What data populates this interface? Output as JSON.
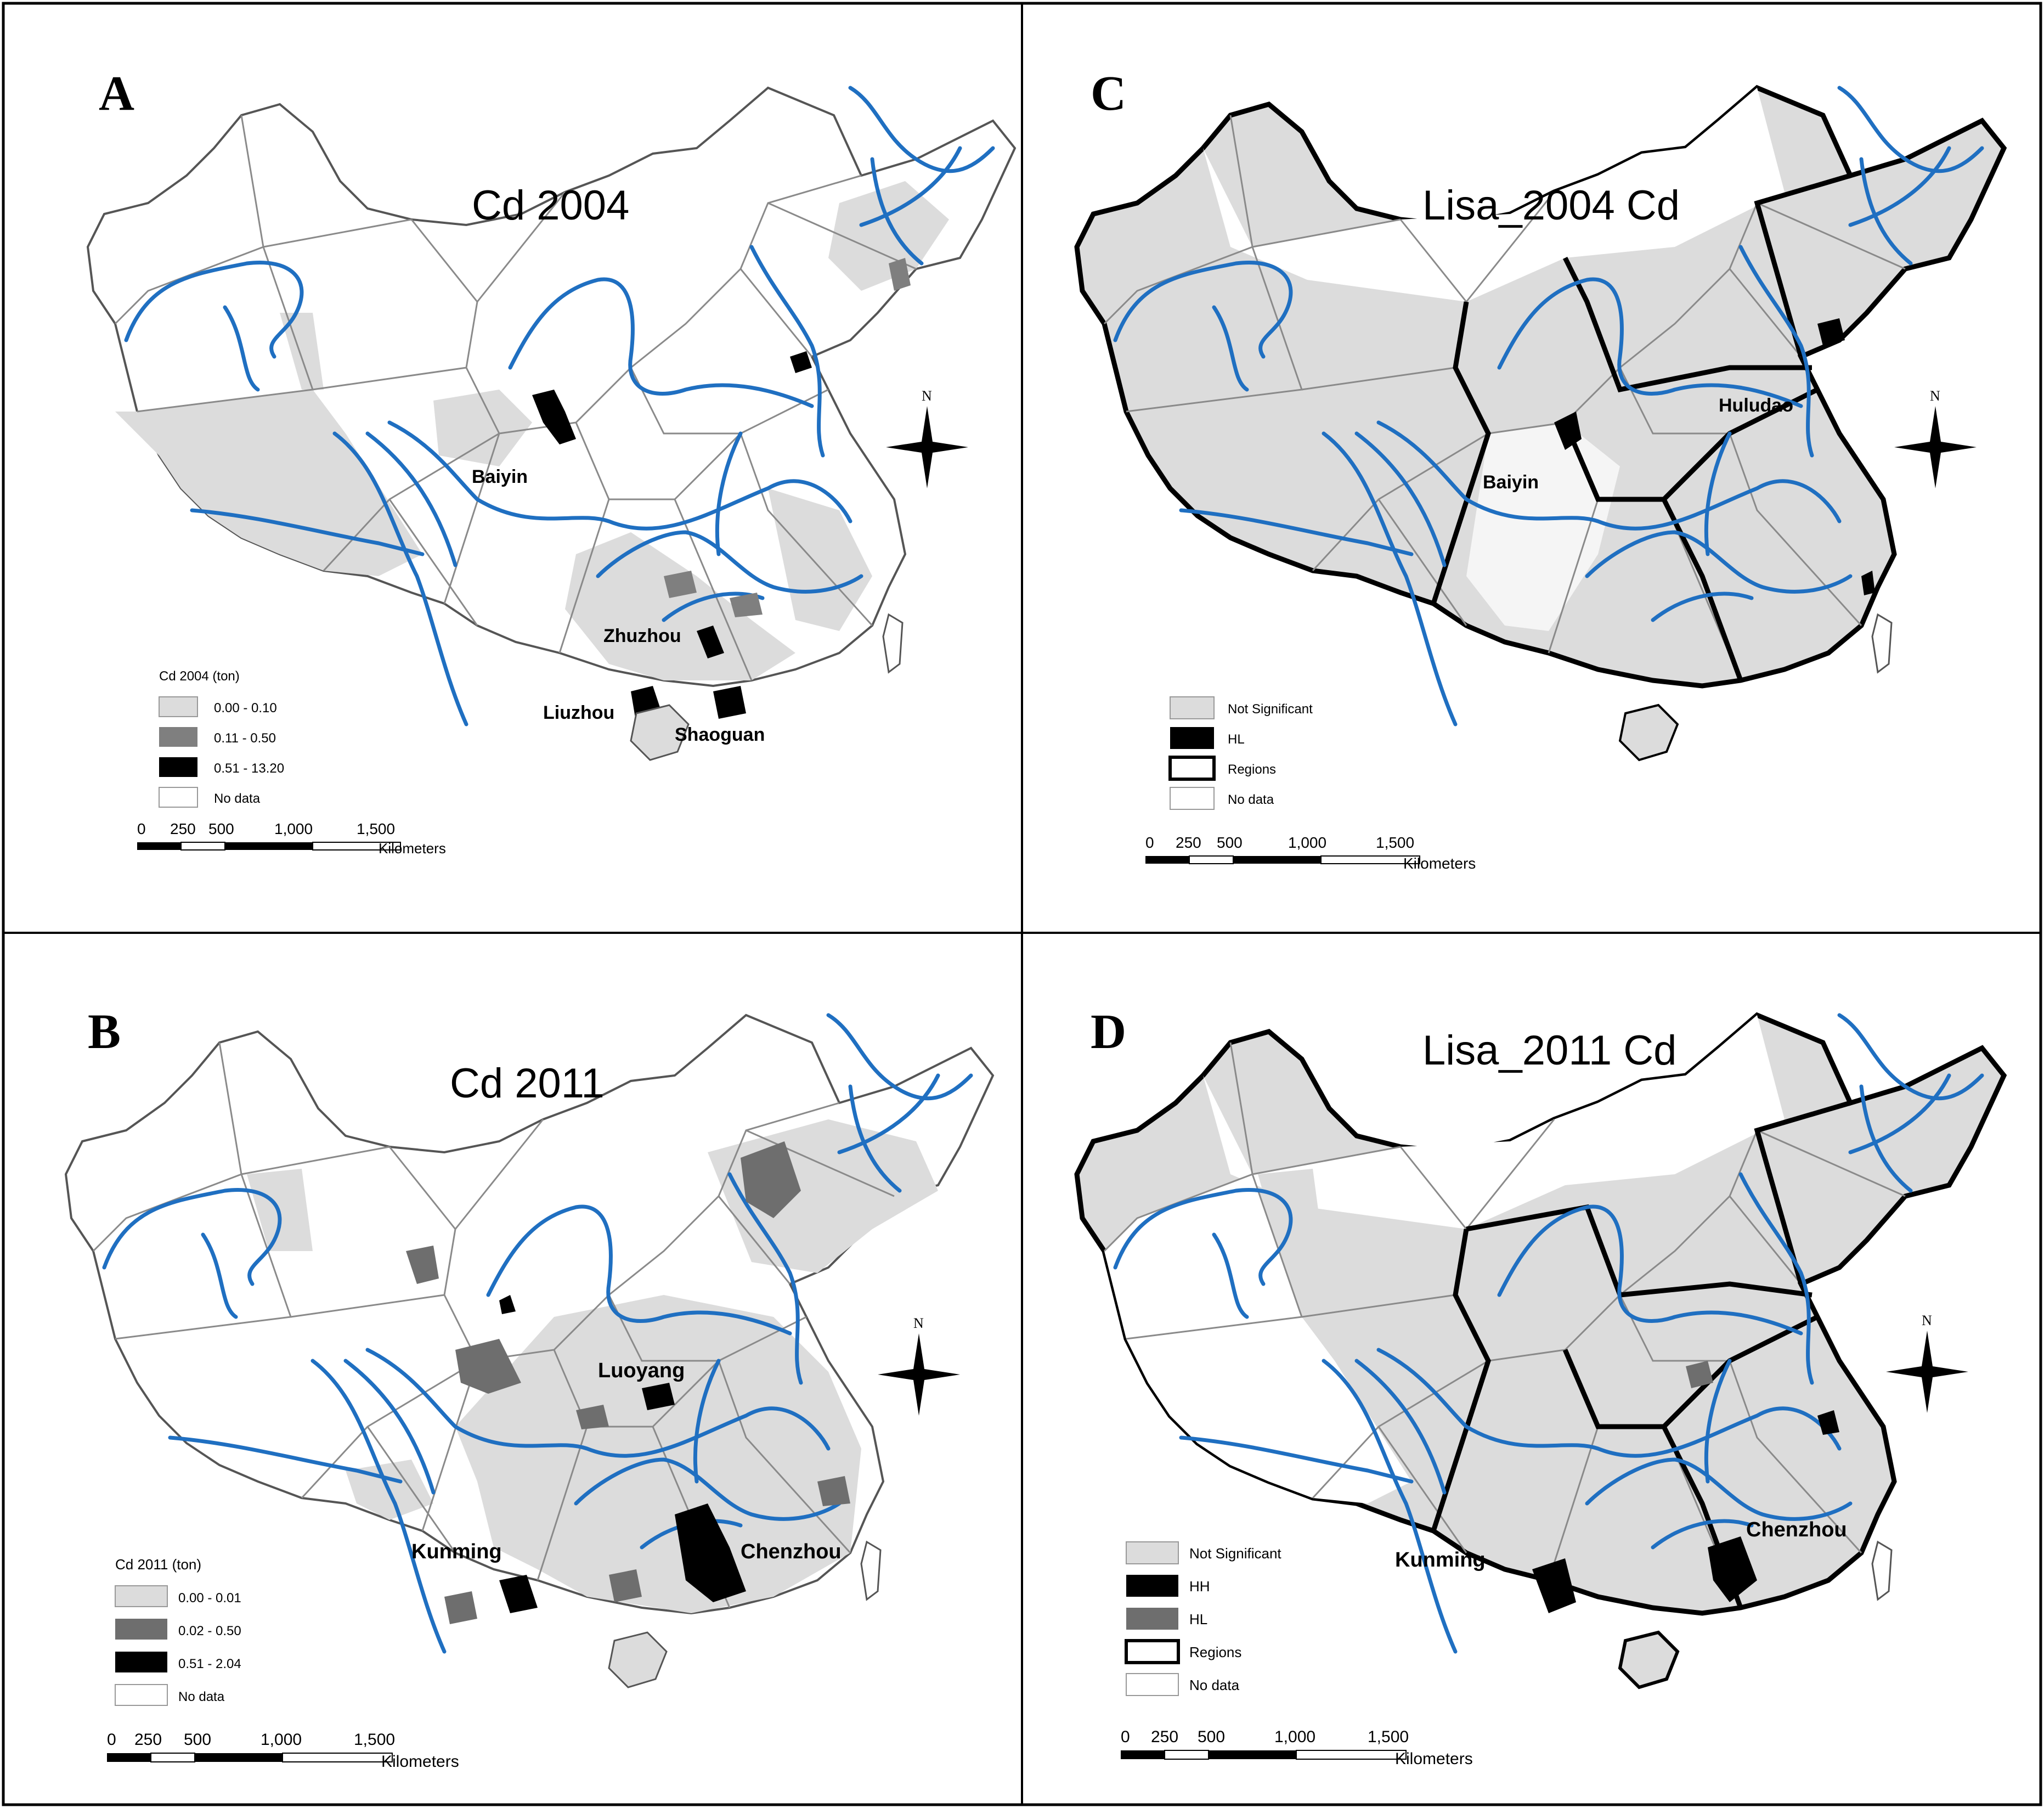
{
  "panels": [
    {
      "letter": "A",
      "title": "Cd 2004",
      "legend_title": "Cd 2004 (ton)",
      "legend": [
        {
          "label": "0.00 - 0.10",
          "color": "#dcdcdc"
        },
        {
          "label": "0.11 - 0.50",
          "color": "#7f7f7f"
        },
        {
          "label": "0.51 - 13.20",
          "color": "#000000"
        },
        {
          "label": "No data",
          "color": "#ffffff"
        }
      ],
      "cities": [
        "Baiyin",
        "Zhuzhou",
        "Liuzhou",
        "Shaoguan"
      ],
      "scale": {
        "ticks": [
          "0",
          "250",
          "500",
          "1,000",
          "1,500"
        ],
        "unit": "Kilometers"
      },
      "north": "N"
    },
    {
      "letter": "B",
      "title": "Cd 2011",
      "legend_title": "Cd 2011 (ton)",
      "legend": [
        {
          "label": "0.00 - 0.01",
          "color": "#dcdcdc"
        },
        {
          "label": "0.02 - 0.50",
          "color": "#6e6e6e"
        },
        {
          "label": "0.51 - 2.04",
          "color": "#000000"
        },
        {
          "label": "No data",
          "color": "#ffffff"
        }
      ],
      "cities": [
        "Luoyang",
        "Kunming",
        "Chenzhou"
      ],
      "scale": {
        "ticks": [
          "0",
          "250",
          "500",
          "1,000",
          "1,500"
        ],
        "unit": "Kilometers"
      },
      "north": "N"
    },
    {
      "letter": "C",
      "title": "Lisa_2004 Cd",
      "legend": [
        {
          "label": "Not Significant",
          "color": "#dcdcdc"
        },
        {
          "label": "HL",
          "color": "#000000"
        },
        {
          "label": "Regions",
          "color": "#ffffff"
        },
        {
          "label": "No data",
          "color": "#ffffff"
        }
      ],
      "cities": [
        "Huludao",
        "Baiyin"
      ],
      "scale": {
        "ticks": [
          "0",
          "250",
          "500",
          "1,000",
          "1,500"
        ],
        "unit": "Kilometers"
      },
      "north": "N"
    },
    {
      "letter": "D",
      "title": "Lisa_2011 Cd",
      "legend": [
        {
          "label": "Not Significant",
          "color": "#dcdcdc"
        },
        {
          "label": "HH",
          "color": "#000000"
        },
        {
          "label": "HL",
          "color": "#6e6e6e"
        },
        {
          "label": "Regions",
          "color": "#ffffff"
        },
        {
          "label": "No data",
          "color": "#ffffff"
        }
      ],
      "cities": [
        "Kunming",
        "Chenzhou"
      ],
      "scale": {
        "ticks": [
          "0",
          "250",
          "500",
          "1,000",
          "1,500"
        ],
        "unit": "Kilometers"
      },
      "north": "N"
    }
  ],
  "colors": {
    "river": "#1f6fc1",
    "boundary": "#8a8a8a",
    "region_border": "#000000",
    "light_fill": "#dcdcdc"
  }
}
